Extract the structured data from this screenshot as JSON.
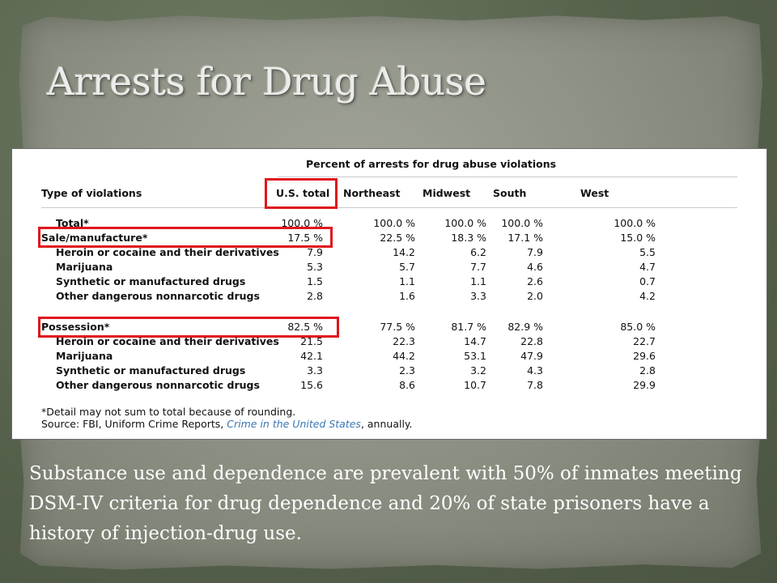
{
  "slide": {
    "title": "Arrests for Drug Abuse",
    "body": "Substance use and dependence are prevalent with 50% of inmates meeting DSM-IV criteria for drug dependence and 20% of state prisoners have a history of injection-drug use."
  },
  "table": {
    "heading": "Percent of arrests for drug abuse violations",
    "columns": [
      "Type of violations",
      "U.S. total",
      "Northeast",
      "Midwest",
      "South",
      "West"
    ],
    "rows": [
      {
        "label": "Total*",
        "values": [
          "100.0 %",
          "100.0 %",
          "100.0 %",
          "100.0 %",
          "100.0 %"
        ]
      },
      {
        "label": "Sale/manufacture*",
        "values": [
          "17.5 %",
          "22.5 %",
          "18.3 %",
          "17.1 %",
          "15.0 %"
        ]
      },
      {
        "label": "Heroin or cocaine and their derivatives",
        "values": [
          "7.9",
          "14.2",
          "6.2",
          "7.9",
          "5.5"
        ]
      },
      {
        "label": "Marijuana",
        "values": [
          "5.3",
          "5.7",
          "7.7",
          "4.6",
          "4.7"
        ]
      },
      {
        "label": "Synthetic or manufactured drugs",
        "values": [
          "1.5",
          "1.1",
          "1.1",
          "2.6",
          "0.7"
        ]
      },
      {
        "label": "Other dangerous nonnarcotic drugs",
        "values": [
          "2.8",
          "1.6",
          "3.3",
          "2.0",
          "4.2"
        ]
      },
      {
        "label": "Possession*",
        "values": [
          "82.5 %",
          "77.5 %",
          "81.7 %",
          "82.9 %",
          "85.0 %"
        ]
      },
      {
        "label": "Heroin or cocaine and their derivatives",
        "values": [
          "21.5",
          "22.3",
          "14.7",
          "22.8",
          "22.7"
        ]
      },
      {
        "label": "Marijuana",
        "values": [
          "42.1",
          "44.2",
          "53.1",
          "47.9",
          "29.6"
        ]
      },
      {
        "label": "Synthetic or manufactured drugs",
        "values": [
          "3.3",
          "2.3",
          "3.2",
          "4.3",
          "2.8"
        ]
      },
      {
        "label": "Other dangerous nonnarcotic drugs",
        "values": [
          "15.6",
          "8.6",
          "10.7",
          "7.8",
          "29.9"
        ]
      }
    ],
    "footnote": "*Detail may not sum to total because of rounding.",
    "source_prefix": "Source: FBI, Uniform Crime Reports, ",
    "source_link": "Crime in the United States",
    "source_suffix": ", annually."
  },
  "colors": {
    "highlight": "#e0161c",
    "link": "#3a77b4"
  }
}
